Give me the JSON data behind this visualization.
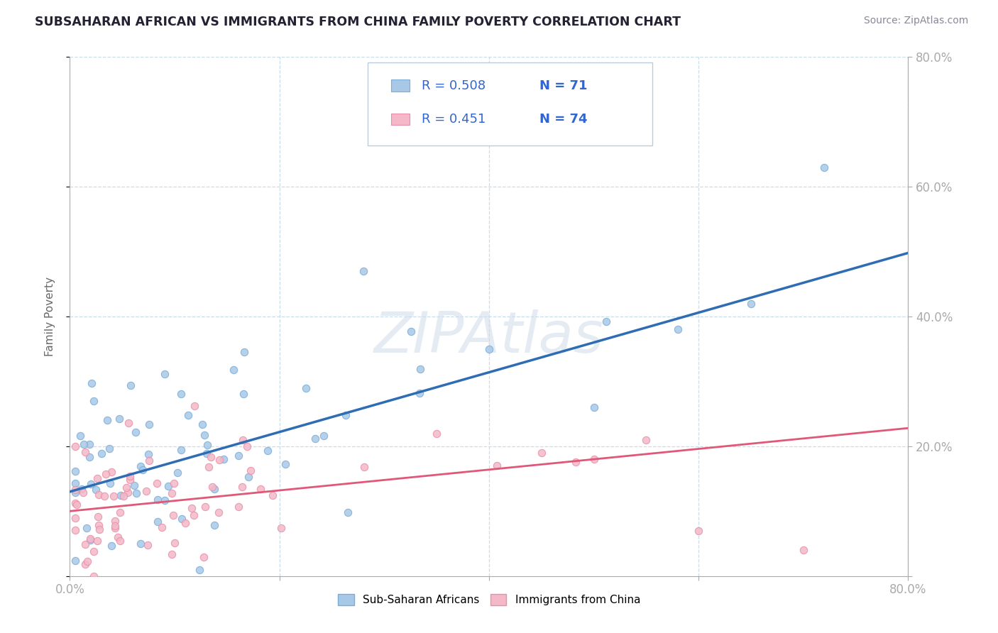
{
  "title": "SUBSAHARAN AFRICAN VS IMMIGRANTS FROM CHINA FAMILY POVERTY CORRELATION CHART",
  "source": "Source: ZipAtlas.com",
  "ylabel": "Family Poverty",
  "xlim": [
    0.0,
    0.8
  ],
  "ylim": [
    0.0,
    0.8
  ],
  "legend_r1": "R = 0.508",
  "legend_n1": "N = 71",
  "legend_r2": "R = 0.451",
  "legend_n2": "N = 74",
  "series1_color": "#a8c8e8",
  "series2_color": "#f4b8c8",
  "series1_edge": "#7aaed6",
  "series2_edge": "#e890a8",
  "trendline1_color": "#2e6db4",
  "trendline2_color": "#e05878",
  "watermark": "ZIPAtlas",
  "background_color": "#ffffff",
  "grid_color": "#c8dcea",
  "legend_box_color": "#aabbcc",
  "legend1_fill": "#a8c8e8",
  "legend2_fill": "#f4b8c8",
  "trendline1_slope": 0.46,
  "trendline1_intercept": 0.13,
  "trendline2_slope": 0.16,
  "trendline2_intercept": 0.1
}
